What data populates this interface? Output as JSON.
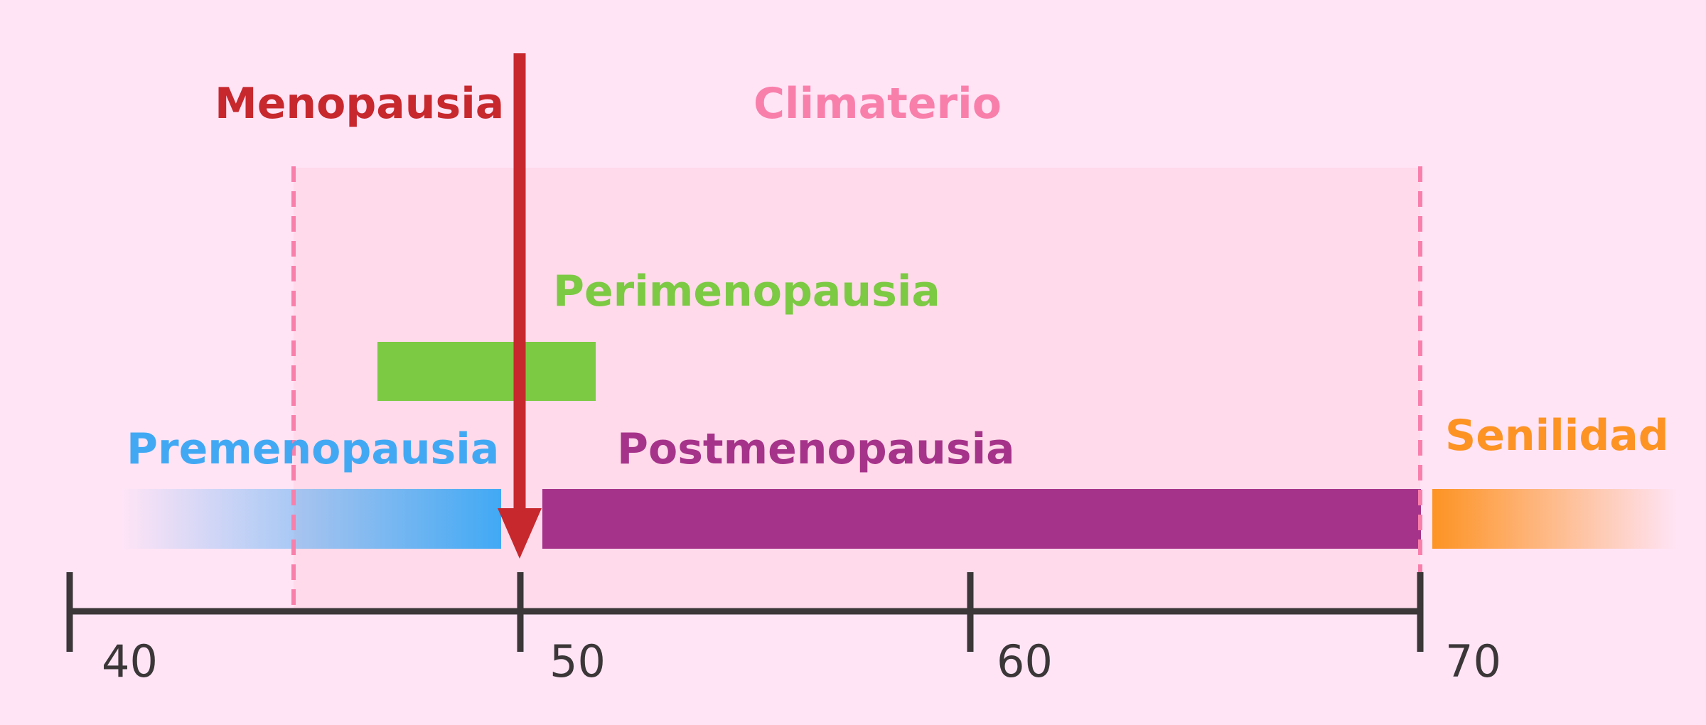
{
  "labels": {
    "menopausia": "Menopausia",
    "climaterio": "Climaterio",
    "perimenopausia": "Perimenopausia",
    "premenopausia": "Premenopausia",
    "postmenopausia": "Postmenopausia",
    "senilidad": "Senilidad"
  },
  "axis": {
    "ticks": [
      "40",
      "50",
      "60",
      "70"
    ]
  },
  "colors": {
    "background": "#ffe4f6",
    "climaterio_fill": "#ffdaea",
    "climaterio_text": "#f97fab",
    "menopausia": "#c7282d",
    "perimenopausia": "#7cc943",
    "premenopausia": "#41a9f4",
    "postmenopausia": "#a6338a",
    "senilidad": "#fd9323",
    "axis": "#3b3637"
  }
}
